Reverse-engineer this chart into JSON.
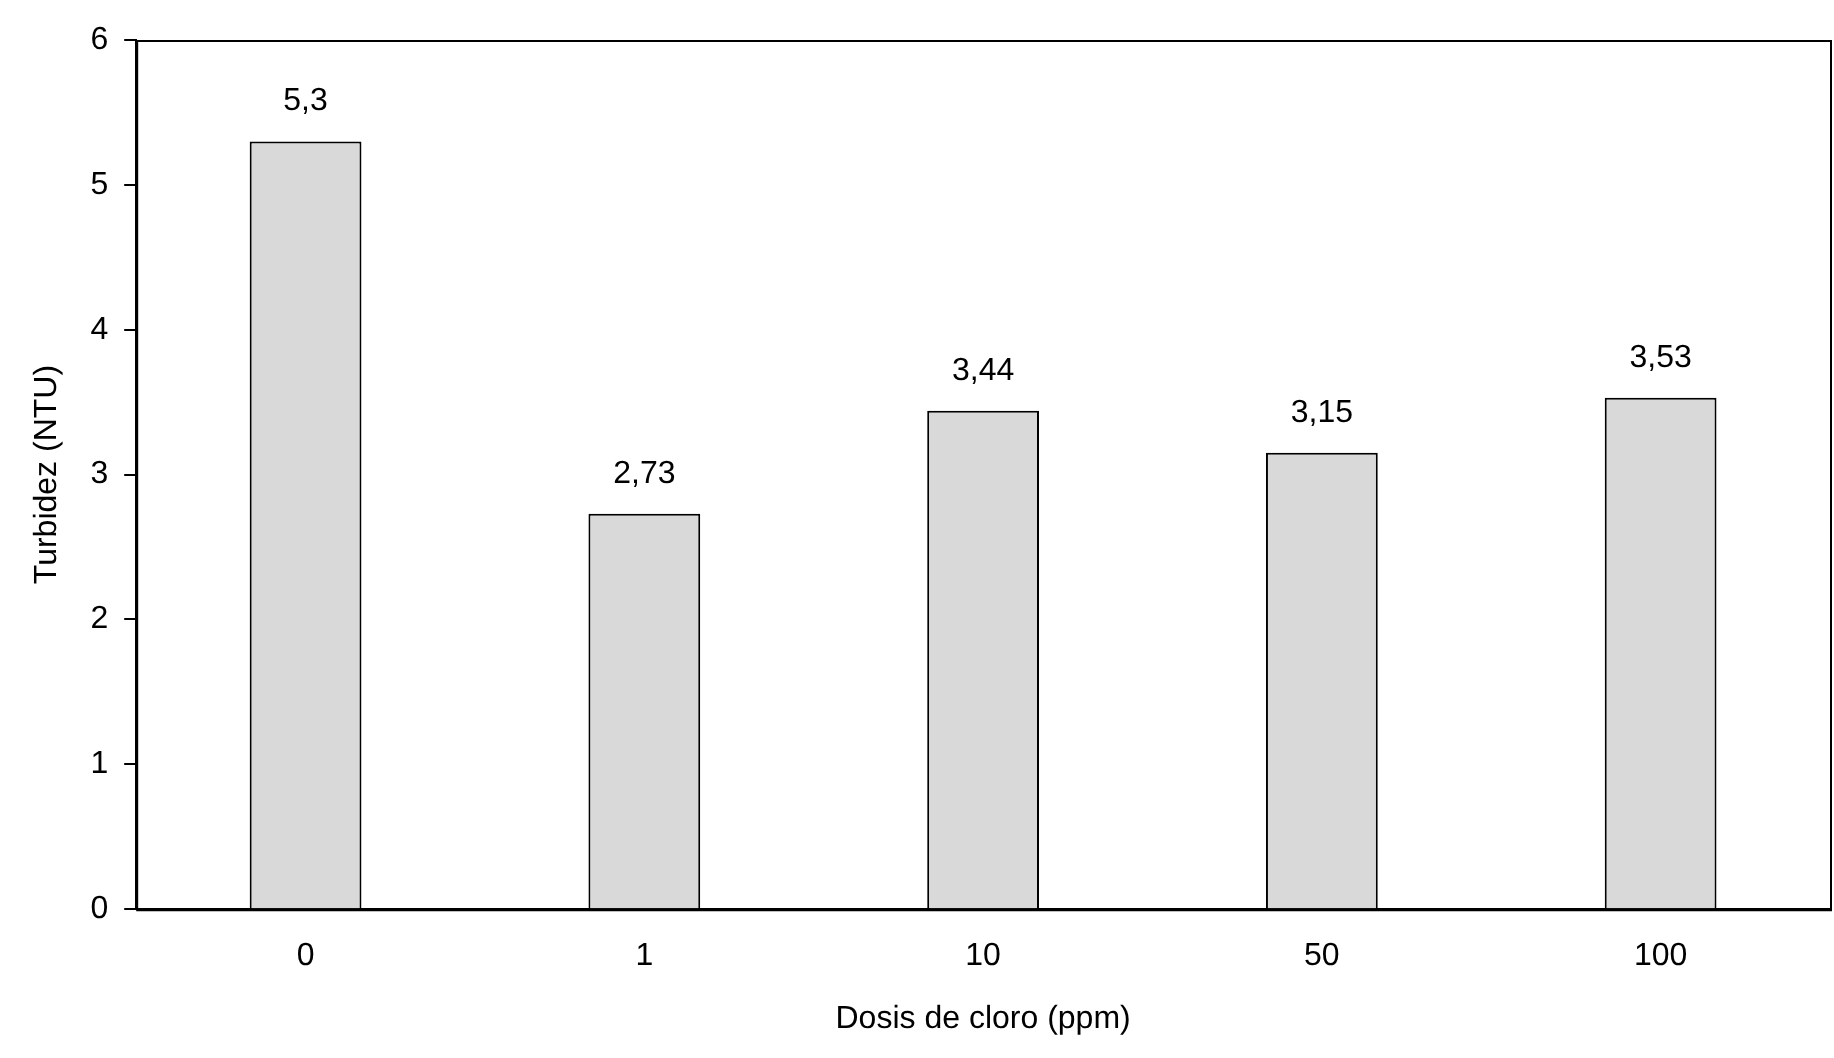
{
  "chart_data": {
    "type": "bar",
    "xlabel": "Dosis de cloro (ppm)",
    "ylabel": "Turbidez (NTU)",
    "categories": [
      "0",
      "1",
      "10",
      "50",
      "100"
    ],
    "values": [
      5.3,
      2.73,
      3.44,
      3.15,
      3.53
    ],
    "value_labels": [
      "5,3",
      "2,73",
      "3,44",
      "3,15",
      "3,53"
    ],
    "color": "#d9d9d9",
    "ylim": [
      0,
      6
    ],
    "yticks": [
      0,
      1,
      2,
      3,
      4,
      5,
      6
    ],
    "grid": false,
    "legend": false
  }
}
